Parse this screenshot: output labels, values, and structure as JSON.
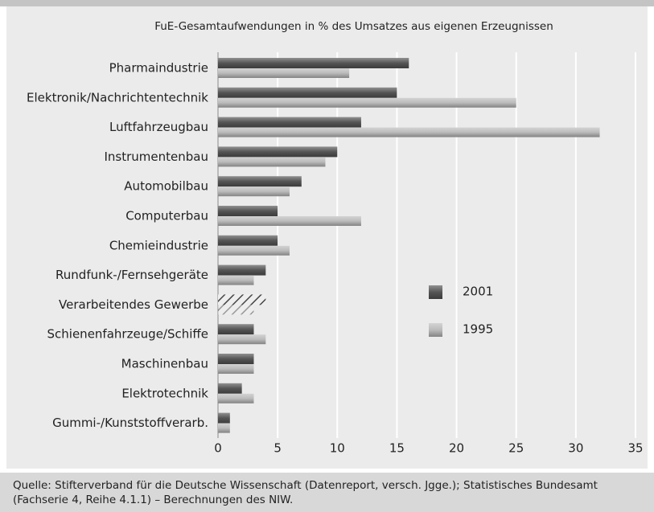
{
  "chart_data": {
    "type": "hbar",
    "title": "FuE-Gesamtaufwendungen in % des Umsatzes aus eigenen Erzeugnissen",
    "categories": [
      "Pharmaindustrie",
      "Elektronik/Nachrichtentechnik",
      "Luftfahrzeugbau",
      "Instrumentenbau",
      "Automobilbau",
      "Computerbau",
      "Chemieindustrie",
      "Rundfunk-/Fernsehgeräte",
      "Verarbeitendes Gewerbe",
      "Schienenfahrzeuge/Schiffe",
      "Maschinenbau",
      "Elektrotechnik",
      "Gummi-/Kunststoffverarb."
    ],
    "series": [
      {
        "name": "2001",
        "color": "#555555",
        "values": [
          16,
          15,
          12,
          10,
          7,
          5,
          5,
          4,
          4,
          3,
          3,
          2,
          1
        ]
      },
      {
        "name": "1995",
        "color": "#bbbbbb",
        "values": [
          11,
          25,
          32,
          9,
          6,
          12,
          6,
          3,
          3,
          4,
          3,
          3,
          1
        ]
      }
    ],
    "hatched_categories": [
      8
    ],
    "xlim": [
      0,
      35
    ],
    "xticks": [
      0,
      5,
      10,
      15,
      20,
      25,
      30,
      35
    ],
    "grid": true,
    "source": [
      "Quelle: Stifterverband für die Deutsche Wissenschaft (Datenreport, versch. Jgge.); Statistisches Bundesamt",
      "(Fachserie 4, Reihe 4.1.1) – Berechnungen des NIW."
    ]
  }
}
